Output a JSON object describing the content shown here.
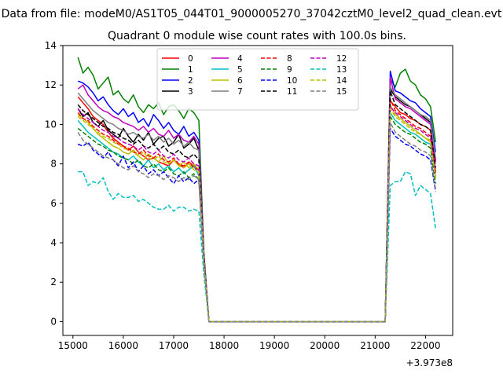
{
  "suptitle": "Data from file: modeM0/AS1T05_044T01_9000005270_37042cztM0_level2_quad_clean.evt",
  "chart_data": {
    "type": "line",
    "title": "Quadrant 0 module wise count rates with 100.0s bins.",
    "xlabel": "",
    "ylabel": "",
    "x_offset_label": "+3.973e8",
    "xlim": [
      14800,
      22540
    ],
    "ylim": [
      -0.7,
      14
    ],
    "xticks": [
      15000,
      16000,
      17000,
      18000,
      19000,
      20000,
      21000,
      22000
    ],
    "xtick_labels": [
      "15000",
      "16000",
      "17000",
      "18000",
      "19000",
      "20000",
      "21000",
      "22000"
    ],
    "yticks": [
      0,
      2,
      4,
      6,
      8,
      10,
      12,
      14
    ],
    "ytick_labels": [
      "0",
      "2",
      "4",
      "6",
      "8",
      "10",
      "12",
      "14"
    ],
    "grid": false,
    "legend_position": "upper-center",
    "legend_columns": 4,
    "segments": {
      "left_start": 15100,
      "left_end": 17500,
      "drop_points": [
        17600,
        17700
      ],
      "zero_end": 21200,
      "rise_point": 21300,
      "right_end": 22200,
      "step": 100
    },
    "series": [
      {
        "name": "0",
        "color": "#ff0000",
        "dash": "solid",
        "left": [
          11.4,
          11.1,
          10.8,
          10.4,
          10.2,
          10.0,
          9.6,
          9.3,
          9.1,
          8.9,
          8.7,
          8.9,
          8.6,
          8.4,
          8.2,
          8.3,
          8.1,
          8.0,
          7.9,
          8.2,
          8.0,
          7.8,
          8.1,
          7.9,
          7.7
        ],
        "drop": [
          3.2,
          0
        ],
        "right": [
          11.2,
          10.9,
          10.6,
          10.5,
          10.3,
          10.2,
          10.0,
          9.9,
          9.7,
          7.6
        ]
      },
      {
        "name": "1",
        "color": "#008000",
        "dash": "solid",
        "left": [
          13.4,
          12.6,
          12.9,
          12.5,
          11.8,
          12.1,
          12.4,
          11.5,
          11.7,
          11.3,
          11.1,
          11.5,
          10.9,
          10.6,
          11.0,
          10.8,
          11.1,
          10.5,
          10.9,
          11.0,
          10.7,
          10.3,
          10.8,
          10.6,
          10.2
        ],
        "drop": [
          3.5,
          0
        ],
        "right": [
          12.3,
          11.9,
          12.6,
          12.8,
          12.2,
          12.0,
          11.5,
          11.3,
          10.9,
          9.1
        ]
      },
      {
        "name": "2",
        "color": "#0000ff",
        "dash": "solid",
        "left": [
          12.2,
          12.1,
          11.9,
          11.6,
          11.2,
          11.4,
          11.0,
          10.7,
          10.5,
          10.8,
          10.4,
          10.6,
          10.1,
          10.3,
          9.9,
          10.5,
          10.2,
          9.8,
          10.1,
          9.7,
          9.5,
          9.9,
          9.4,
          9.6,
          9.2
        ],
        "drop": [
          3.4,
          0
        ],
        "right": [
          12.7,
          11.7,
          11.6,
          11.4,
          11.2,
          11.1,
          10.8,
          10.6,
          10.4,
          8.6
        ]
      },
      {
        "name": "3",
        "color": "#000000",
        "dash": "solid",
        "left": [
          10.8,
          10.4,
          10.6,
          10.1,
          9.9,
          10.2,
          9.7,
          9.5,
          9.3,
          9.8,
          9.4,
          9.1,
          9.5,
          9.2,
          9.6,
          9.0,
          9.3,
          9.4,
          8.9,
          9.1,
          9.5,
          8.8,
          9.0,
          9.3,
          8.7
        ],
        "drop": [
          3.3,
          0
        ],
        "right": [
          11.8,
          11.4,
          11.2,
          11.0,
          10.9,
          10.7,
          10.5,
          10.3,
          10.1,
          8.2
        ]
      },
      {
        "name": "4",
        "color": "#bf00bf",
        "dash": "solid",
        "left": [
          11.8,
          12.0,
          11.5,
          11.2,
          10.9,
          10.7,
          10.6,
          10.4,
          10.3,
          10.1,
          10.0,
          9.9,
          9.7,
          9.9,
          9.6,
          9.8,
          9.5,
          9.4,
          9.7,
          9.3,
          9.5,
          9.2,
          9.1,
          9.4,
          9.0
        ],
        "drop": [
          3.4,
          0
        ],
        "right": [
          12.4,
          11.3,
          11.1,
          10.9,
          10.8,
          10.6,
          10.4,
          10.2,
          10.0,
          8.1
        ]
      },
      {
        "name": "5",
        "color": "#00bfbf",
        "dash": "solid",
        "left": [
          10.2,
          9.9,
          9.6,
          9.4,
          9.2,
          9.0,
          8.8,
          8.6,
          8.5,
          8.3,
          8.2,
          8.4,
          8.1,
          7.9,
          8.2,
          7.8,
          8.0,
          7.7,
          7.9,
          7.6,
          7.8,
          7.5,
          7.7,
          7.9,
          7.4
        ],
        "drop": [
          3.1,
          0
        ],
        "right": [
          10.6,
          10.2,
          10.0,
          9.8,
          9.6,
          9.5,
          9.3,
          9.1,
          9.0,
          7.3
        ]
      },
      {
        "name": "6",
        "color": "#bfbf00",
        "dash": "solid",
        "left": [
          10.5,
          10.3,
          10.1,
          9.8,
          9.5,
          9.3,
          9.1,
          8.9,
          8.8,
          8.6,
          8.5,
          8.7,
          8.4,
          8.2,
          8.5,
          8.3,
          8.1,
          8.4,
          8.0,
          8.2,
          7.9,
          8.1,
          7.8,
          8.0,
          7.7
        ],
        "drop": [
          3.2,
          0
        ],
        "right": [
          11.0,
          10.5,
          10.3,
          10.1,
          9.9,
          9.7,
          9.5,
          9.3,
          9.2,
          7.4
        ]
      },
      {
        "name": "7",
        "color": "#7f7f7f",
        "dash": "solid",
        "left": [
          11.6,
          11.3,
          11.0,
          10.7,
          10.5,
          10.3,
          10.1,
          10.0,
          9.8,
          9.7,
          9.5,
          9.6,
          9.4,
          9.3,
          9.5,
          9.2,
          9.4,
          9.1,
          9.3,
          9.0,
          9.2,
          8.9,
          9.1,
          8.8,
          8.7
        ],
        "drop": [
          3.3,
          0
        ],
        "right": [
          11.9,
          11.5,
          11.3,
          11.1,
          10.9,
          10.7,
          10.5,
          10.4,
          10.2,
          8.3
        ]
      },
      {
        "name": "8",
        "color": "#ff0000",
        "dash": "dashed",
        "left": [
          10.6,
          10.3,
          10.2,
          9.9,
          9.7,
          9.5,
          9.4,
          9.2,
          9.0,
          8.9,
          8.8,
          8.6,
          8.5,
          8.7,
          8.4,
          8.3,
          8.5,
          8.2,
          8.1,
          8.3,
          8.0,
          7.9,
          8.1,
          7.8,
          7.7
        ],
        "drop": [
          3.1,
          0
        ],
        "right": [
          11.3,
          10.7,
          10.5,
          10.3,
          10.1,
          9.9,
          9.8,
          9.6,
          9.4,
          7.6
        ]
      },
      {
        "name": "9",
        "color": "#008000",
        "dash": "dashed",
        "left": [
          9.8,
          9.6,
          9.4,
          9.2,
          9.0,
          8.9,
          8.7,
          8.6,
          8.4,
          8.3,
          8.2,
          8.0,
          8.2,
          7.9,
          7.8,
          8.0,
          7.7,
          7.6,
          7.8,
          7.5,
          7.4,
          7.6,
          7.3,
          7.5,
          7.2
        ],
        "drop": [
          3.0,
          0
        ],
        "right": [
          10.4,
          10.0,
          9.8,
          9.6,
          9.5,
          9.3,
          9.1,
          9.0,
          8.8,
          7.0
        ]
      },
      {
        "name": "10",
        "color": "#0000ff",
        "dash": "dashed",
        "left": [
          9.0,
          8.9,
          9.1,
          8.7,
          8.5,
          8.3,
          8.6,
          8.2,
          7.9,
          8.4,
          7.8,
          8.1,
          7.6,
          7.9,
          7.5,
          7.7,
          7.4,
          7.6,
          7.3,
          7.0,
          7.4,
          7.1,
          7.3,
          7.0,
          7.2
        ],
        "drop": [
          3.0,
          0
        ],
        "right": [
          9.8,
          9.4,
          9.2,
          9.0,
          8.9,
          8.7,
          8.5,
          8.4,
          8.2,
          6.6
        ]
      },
      {
        "name": "11",
        "color": "#000000",
        "dash": "dashed",
        "left": [
          11.0,
          10.7,
          10.5,
          10.3,
          10.1,
          9.9,
          9.8,
          9.6,
          9.5,
          9.3,
          9.2,
          9.0,
          9.2,
          8.9,
          8.8,
          9.0,
          8.7,
          8.9,
          8.6,
          8.5,
          8.7,
          8.4,
          8.3,
          8.5,
          8.2
        ],
        "drop": [
          3.3,
          0
        ],
        "right": [
          11.7,
          11.0,
          10.8,
          10.6,
          10.4,
          10.2,
          10.0,
          9.9,
          9.7,
          7.8
        ]
      },
      {
        "name": "12",
        "color": "#bf00bf",
        "dash": "dashed",
        "left": [
          10.8,
          10.5,
          10.3,
          10.1,
          9.9,
          9.7,
          9.6,
          9.4,
          9.3,
          9.1,
          9.0,
          8.9,
          8.7,
          8.9,
          8.6,
          8.5,
          8.7,
          8.4,
          8.3,
          8.5,
          8.2,
          8.1,
          8.3,
          8.0,
          7.9
        ],
        "drop": [
          3.2,
          0
        ],
        "right": [
          10.9,
          10.6,
          10.4,
          10.2,
          10.0,
          9.8,
          9.7,
          9.5,
          9.3,
          7.5
        ]
      },
      {
        "name": "13",
        "color": "#00bfbf",
        "dash": "dashed",
        "left": [
          7.6,
          7.6,
          6.9,
          7.1,
          7.0,
          7.3,
          6.6,
          6.2,
          6.5,
          6.3,
          6.3,
          6.4,
          6.1,
          6.2,
          6.0,
          5.8,
          5.7,
          5.7,
          5.9,
          5.6,
          5.8,
          5.8,
          5.6,
          5.7,
          5.6
        ],
        "drop": [
          2.4,
          0
        ],
        "right": [
          6.9,
          7.1,
          7.1,
          7.6,
          7.5,
          6.4,
          6.9,
          6.7,
          6.5,
          4.7
        ]
      },
      {
        "name": "14",
        "color": "#bfbf00",
        "dash": "dashed",
        "left": [
          10.4,
          10.2,
          10.0,
          9.8,
          9.6,
          9.4,
          9.3,
          9.1,
          9.0,
          8.8,
          8.7,
          8.6,
          8.4,
          8.6,
          8.3,
          8.2,
          8.4,
          8.1,
          8.0,
          8.2,
          7.9,
          7.8,
          8.0,
          7.7,
          7.6
        ],
        "drop": [
          3.1,
          0
        ],
        "right": [
          10.8,
          10.4,
          10.2,
          10.0,
          9.8,
          9.6,
          9.5,
          9.3,
          9.1,
          7.3
        ]
      },
      {
        "name": "15",
        "color": "#7f7f7f",
        "dash": "dashed",
        "left": [
          9.6,
          9.2,
          9.0,
          8.8,
          8.6,
          8.4,
          8.3,
          8.2,
          8.0,
          7.8,
          7.7,
          7.9,
          7.6,
          7.5,
          7.3,
          7.5,
          7.4,
          7.2,
          7.4,
          7.3,
          7.1,
          7.3,
          7.2,
          7.4,
          7.2
        ],
        "drop": [
          2.9,
          0
        ],
        "right": [
          10.1,
          9.6,
          9.4,
          9.2,
          9.0,
          8.9,
          8.7,
          8.6,
          8.4,
          6.7
        ]
      }
    ]
  }
}
